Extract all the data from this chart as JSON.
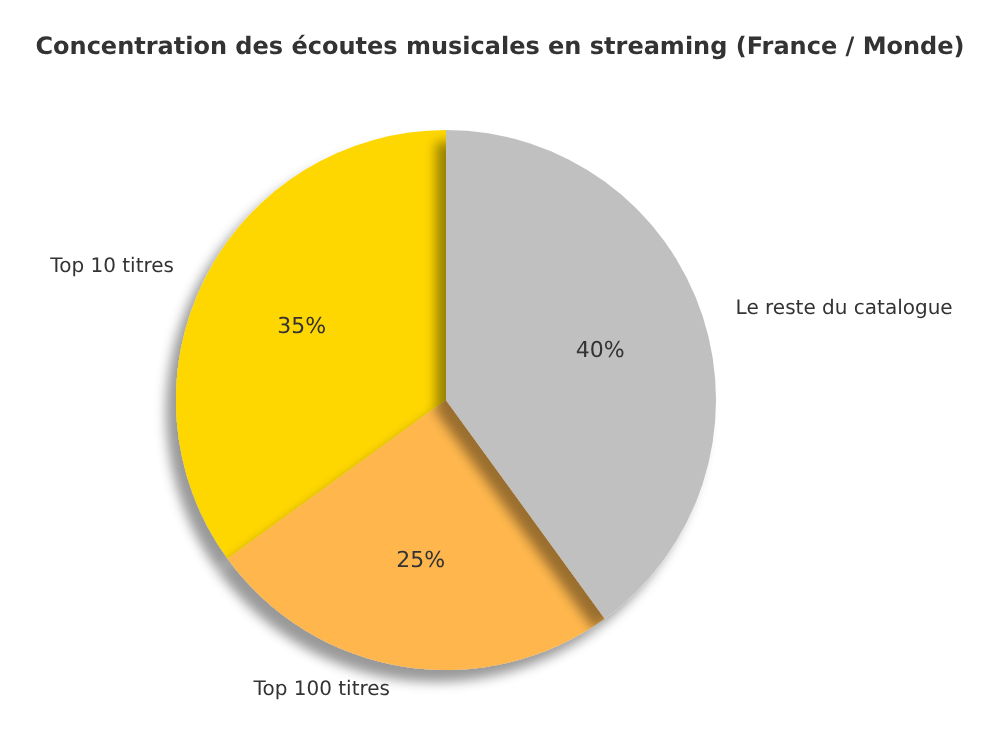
{
  "chart_data": {
    "type": "pie",
    "title": "Concentration des écoutes musicales en streaming (France / Monde)",
    "categories": [
      "Top 10 titres",
      "Top 100 titres",
      "Le reste du catalogue"
    ],
    "values": [
      35,
      25,
      40
    ],
    "colors": [
      "#ffd700",
      "#ffb74d",
      "#c0c0c0"
    ],
    "value_labels": [
      "35%",
      "25%",
      "40%"
    ],
    "legend": false
  }
}
